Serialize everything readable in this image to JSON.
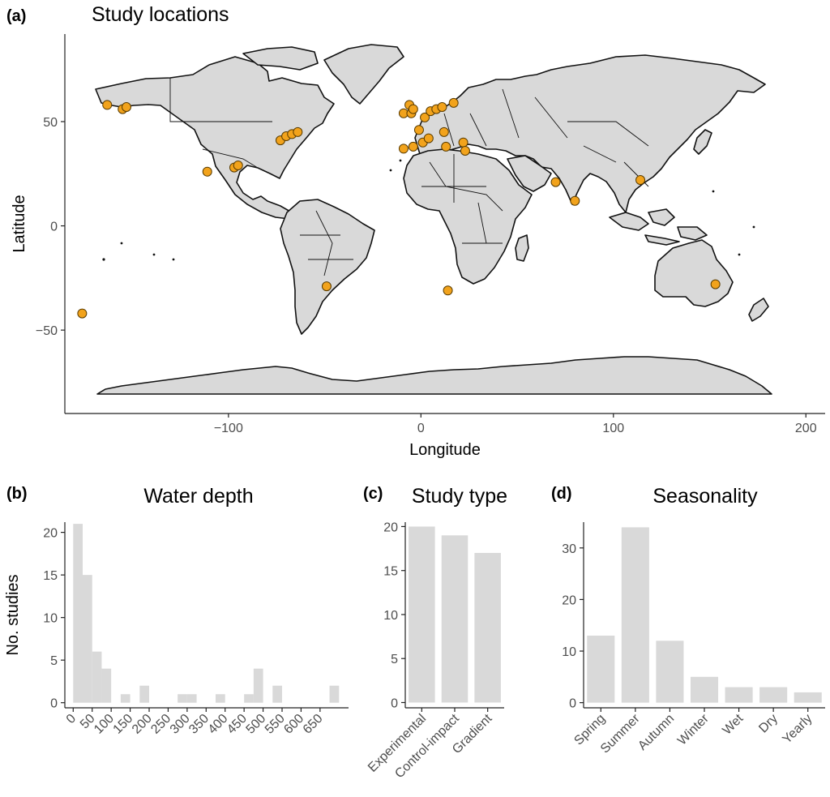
{
  "panels": {
    "a": {
      "label": "(a)",
      "title": "Study locations"
    },
    "b": {
      "label": "(b)",
      "title": "Water depth"
    },
    "c": {
      "label": "(c)",
      "title": "Study type"
    },
    "d": {
      "label": "(d)",
      "title": "Seasonality"
    }
  },
  "colors": {
    "land": "#d9d9d9",
    "site": "#f2a31c",
    "bar": "#d9d9d9"
  },
  "chart_data": [
    {
      "type": "scatter",
      "title": "Study locations",
      "xlabel": "Longitude",
      "ylabel": "Latitude",
      "xlim": [
        -185,
        210
      ],
      "ylim": [
        -90,
        92
      ],
      "xticks": [
        -100,
        0,
        100,
        200
      ],
      "yticks": [
        50,
        0,
        -50
      ],
      "xtick_labels": [
        "−100",
        "0",
        "100",
        "200"
      ],
      "ytick_labels": [
        "50",
        "0",
        "−50"
      ],
      "grid": false,
      "points": [
        {
          "lon": -163,
          "lat": 58
        },
        {
          "lon": -155,
          "lat": 56
        },
        {
          "lon": -153,
          "lat": 57
        },
        {
          "lon": -176,
          "lat": -42
        },
        {
          "lon": -73,
          "lat": 41
        },
        {
          "lon": -70,
          "lat": 43
        },
        {
          "lon": -67,
          "lat": 44
        },
        {
          "lon": -64,
          "lat": 45
        },
        {
          "lon": -111,
          "lat": 26
        },
        {
          "lon": -97,
          "lat": 28
        },
        {
          "lon": -95,
          "lat": 29
        },
        {
          "lon": -49,
          "lat": -29
        },
        {
          "lon": -9,
          "lat": 54
        },
        {
          "lon": -6,
          "lat": 58
        },
        {
          "lon": -5,
          "lat": 54
        },
        {
          "lon": -4,
          "lat": 56
        },
        {
          "lon": 2,
          "lat": 52
        },
        {
          "lon": 5,
          "lat": 55
        },
        {
          "lon": 8,
          "lat": 56
        },
        {
          "lon": 11,
          "lat": 57
        },
        {
          "lon": 17,
          "lat": 59
        },
        {
          "lon": -1,
          "lat": 46
        },
        {
          "lon": -9,
          "lat": 37
        },
        {
          "lon": -4,
          "lat": 38
        },
        {
          "lon": 1,
          "lat": 40
        },
        {
          "lon": 4,
          "lat": 42
        },
        {
          "lon": 12,
          "lat": 45
        },
        {
          "lon": 13,
          "lat": 38
        },
        {
          "lon": 22,
          "lat": 40
        },
        {
          "lon": 23,
          "lat": 36
        },
        {
          "lon": 70,
          "lat": 21
        },
        {
          "lon": 80,
          "lat": 12
        },
        {
          "lon": 114,
          "lat": 22
        },
        {
          "lon": 153,
          "lat": -28
        },
        {
          "lon": 14,
          "lat": -31
        }
      ]
    },
    {
      "type": "bar",
      "title": "Water depth",
      "xlabel": "",
      "ylabel": "No. studies",
      "bin_width": 25,
      "bins": [
        {
          "x": 12.5,
          "value": 21
        },
        {
          "x": 37.5,
          "value": 15
        },
        {
          "x": 62.5,
          "value": 6
        },
        {
          "x": 87.5,
          "value": 4
        },
        {
          "x": 112.5,
          "value": 0
        },
        {
          "x": 137.5,
          "value": 1
        },
        {
          "x": 162.5,
          "value": 0
        },
        {
          "x": 187.5,
          "value": 2
        },
        {
          "x": 212.5,
          "value": 0
        },
        {
          "x": 237.5,
          "value": 0
        },
        {
          "x": 262.5,
          "value": 0
        },
        {
          "x": 287.5,
          "value": 1
        },
        {
          "x": 312.5,
          "value": 1
        },
        {
          "x": 337.5,
          "value": 0
        },
        {
          "x": 362.5,
          "value": 0
        },
        {
          "x": 387.5,
          "value": 1
        },
        {
          "x": 412.5,
          "value": 0
        },
        {
          "x": 437.5,
          "value": 0
        },
        {
          "x": 462.5,
          "value": 1
        },
        {
          "x": 487.5,
          "value": 4
        },
        {
          "x": 512.5,
          "value": 0
        },
        {
          "x": 537.5,
          "value": 2
        },
        {
          "x": 562.5,
          "value": 0
        },
        {
          "x": 587.5,
          "value": 0
        },
        {
          "x": 612.5,
          "value": 0
        },
        {
          "x": 637.5,
          "value": 0
        },
        {
          "x": 662.5,
          "value": 0
        },
        {
          "x": 687.5,
          "value": 2
        }
      ],
      "xlim": [
        -22,
        725
      ],
      "ylim": [
        -0.6,
        21.2
      ],
      "xticks": [
        0,
        50,
        100,
        150,
        200,
        250,
        300,
        350,
        400,
        450,
        500,
        550,
        600,
        650
      ],
      "yticks": [
        0,
        5,
        10,
        15,
        20
      ]
    },
    {
      "type": "bar",
      "title": "Study type",
      "categories": [
        "Experimental",
        "Control-impact",
        "Gradient"
      ],
      "values": [
        20,
        19,
        17
      ],
      "ylim": [
        -0.6,
        20.5
      ],
      "yticks": [
        0,
        5,
        10,
        15,
        20
      ]
    },
    {
      "type": "bar",
      "title": "Seasonality",
      "categories": [
        "Spring",
        "Summer",
        "Autumn",
        "Winter",
        "Wet",
        "Dry",
        "Yearly"
      ],
      "values": [
        13,
        34,
        12,
        5,
        3,
        3,
        2
      ],
      "ylim": [
        -1,
        35
      ],
      "yticks": [
        0,
        10,
        20,
        30
      ]
    }
  ]
}
